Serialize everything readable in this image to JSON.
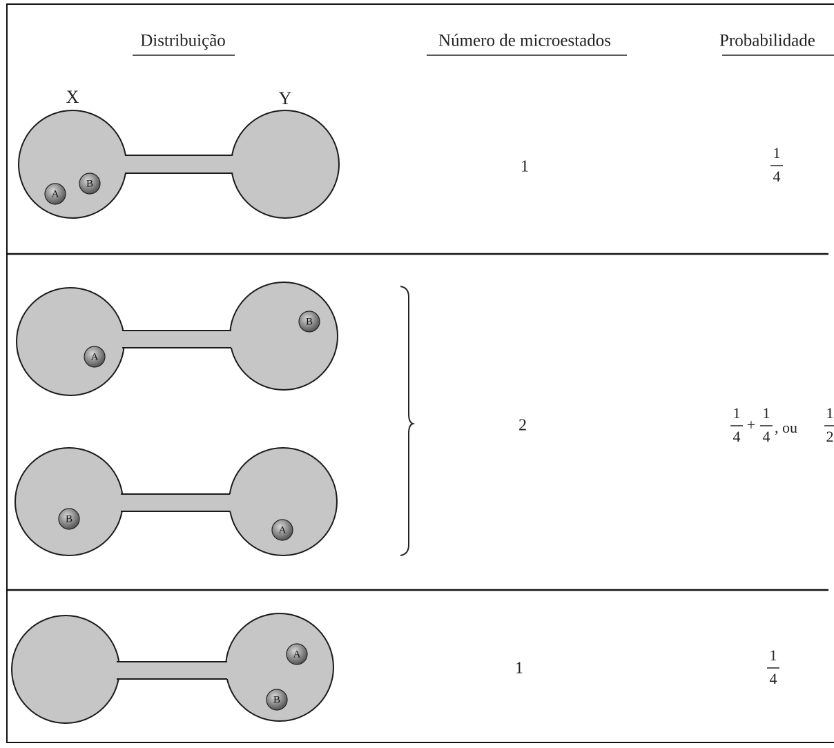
{
  "header": {
    "distribution": "Distribuição",
    "microstates": "Número de microestados",
    "probability": "Probabilidade"
  },
  "flask_labels": {
    "x": "X",
    "y": "Y"
  },
  "rows": [
    {
      "distributions": [
        {
          "x": [
            "A",
            "B"
          ],
          "y": []
        }
      ],
      "microstates": "1",
      "probability": {
        "terms": [
          {
            "numerator": "1",
            "denominator": "4"
          }
        ]
      }
    },
    {
      "distributions": [
        {
          "x": [
            "A"
          ],
          "y": [
            "B"
          ]
        },
        {
          "x": [
            "B"
          ],
          "y": [
            "A"
          ]
        }
      ],
      "microstates": "2",
      "probability": {
        "terms": [
          {
            "numerator": "1",
            "denominator": "4"
          },
          {
            "numerator": "1",
            "denominator": "4"
          }
        ],
        "operator": "+",
        "conjunction": ", ou",
        "result": {
          "numerator": "1",
          "denominator": "2"
        }
      }
    },
    {
      "distributions": [
        {
          "x": [],
          "y": [
            "A",
            "B"
          ]
        }
      ],
      "microstates": "1",
      "probability": {
        "terms": [
          {
            "numerator": "1",
            "denominator": "4"
          }
        ]
      }
    }
  ]
}
